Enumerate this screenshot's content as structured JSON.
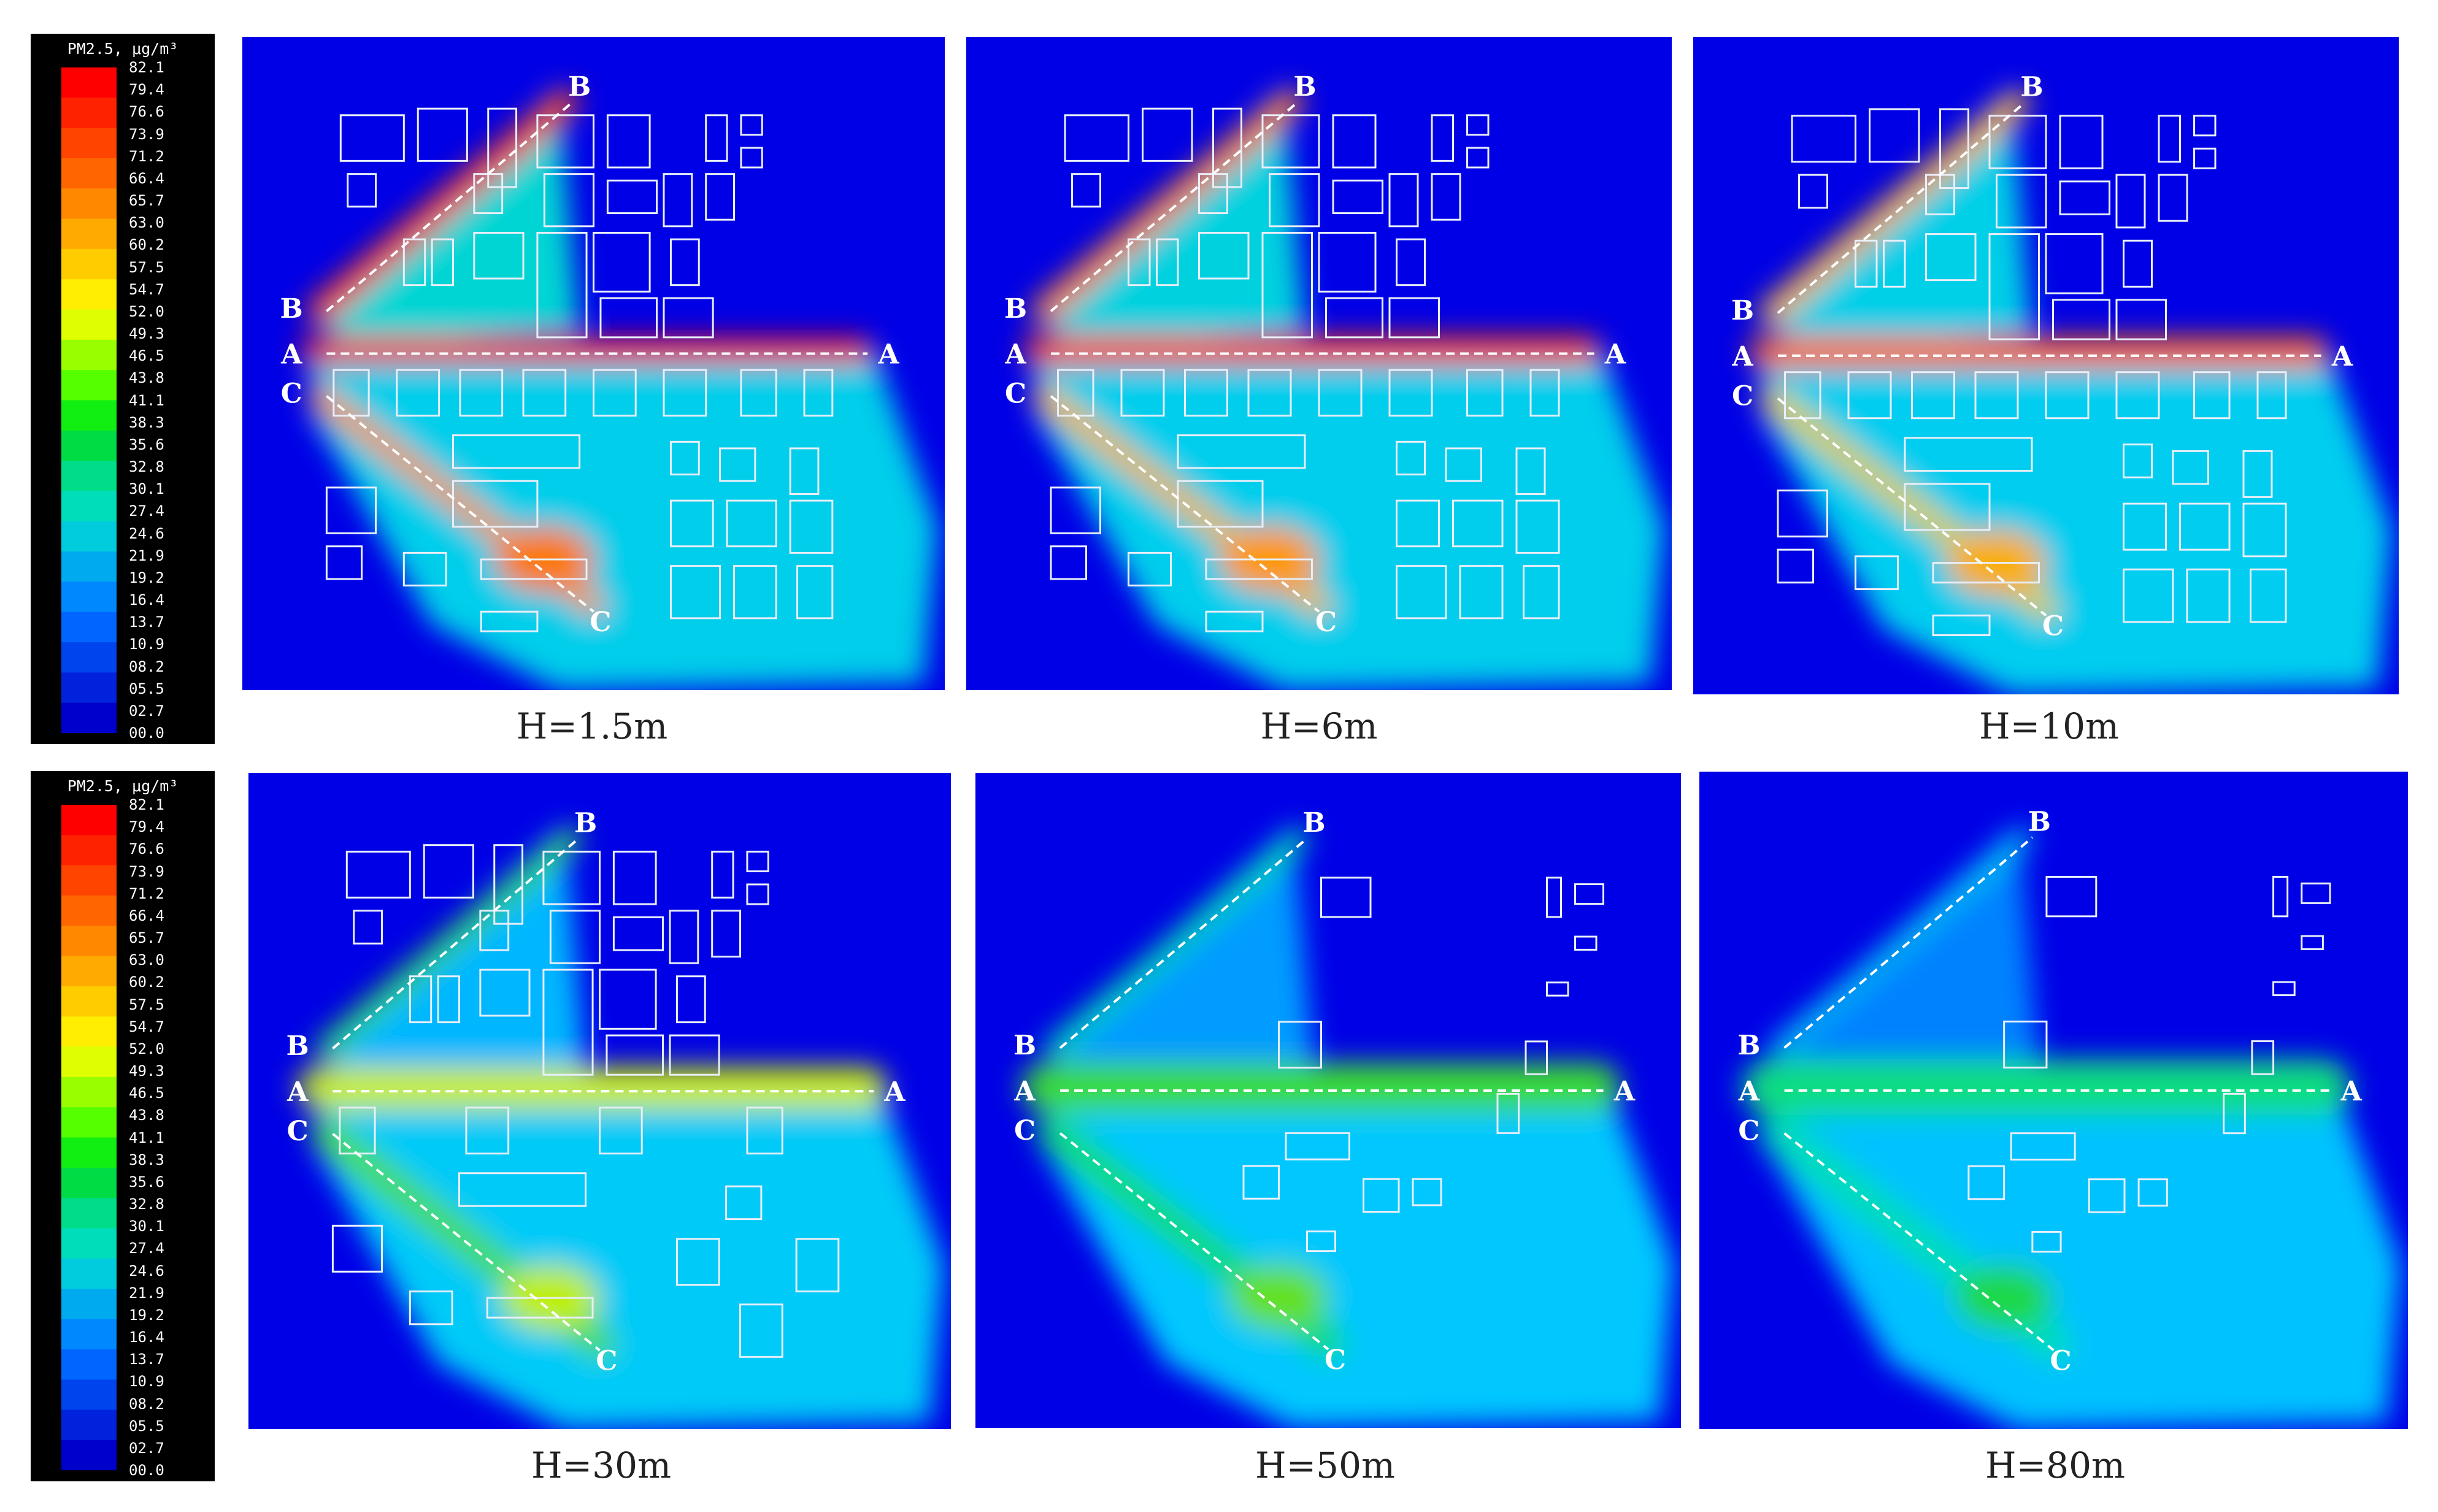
{
  "legend": {
    "title": "PM2.5, μg/m³",
    "ticks": [
      "82.1",
      "79.4",
      "76.6",
      "73.9",
      "71.2",
      "66.4",
      "65.7",
      "63.0",
      "60.2",
      "57.5",
      "54.7",
      "52.0",
      "49.3",
      "46.5",
      "43.8",
      "41.1",
      "38.3",
      "35.6",
      "32.8",
      "30.1",
      "27.4",
      "24.6",
      "21.9",
      "19.2",
      "16.4",
      "13.7",
      "10.9",
      "08.2",
      "05.5",
      "02.7",
      "00.0"
    ],
    "colors": [
      "#ff0000",
      "#ff2200",
      "#ff4400",
      "#ff6600",
      "#ff8800",
      "#ffaa00",
      "#ffcc00",
      "#ffee00",
      "#ddff00",
      "#99ff00",
      "#55ff00",
      "#11ee11",
      "#00dd44",
      "#00dd88",
      "#00ddbb",
      "#00ccdd",
      "#00aaee",
      "#0088ff",
      "#0066ff",
      "#0044ee",
      "#0022dd",
      "#0000cc"
    ]
  },
  "panels": [
    {
      "caption": "H=1.5m",
      "intensity": 1.0
    },
    {
      "caption": "H=6m",
      "intensity": 0.92
    },
    {
      "caption": "H=10m",
      "intensity": 0.85
    },
    {
      "caption": "H=30m",
      "intensity": 0.55
    },
    {
      "caption": "H=50m",
      "intensity": 0.35
    },
    {
      "caption": "H=80m",
      "intensity": 0.15
    }
  ],
  "line_labels": {
    "a": "A",
    "b": "B",
    "c": "C"
  }
}
